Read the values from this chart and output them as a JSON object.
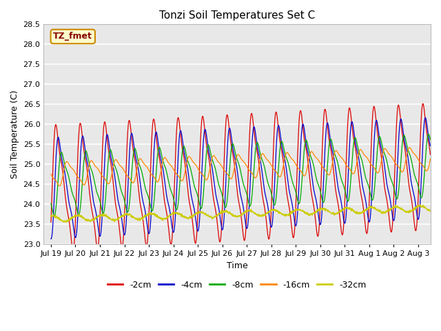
{
  "title": "Tonzi Soil Temperatures Set C",
  "xlabel": "Time",
  "ylabel": "Soil Temperature (C)",
  "ylim": [
    23.0,
    28.5
  ],
  "label_box_text": "TZ_fmet",
  "label_box_facecolor": "#ffffcc",
  "label_box_edgecolor": "#cc8800",
  "label_box_textcolor": "#880000",
  "background_color": "#ffffff",
  "plot_bg_color": "#e8e8e8",
  "grid_color": "#ffffff",
  "series": [
    {
      "label": "-2cm",
      "color": "#dd0000"
    },
    {
      "label": "-4cm",
      "color": "#0000cc"
    },
    {
      "label": "-8cm",
      "color": "#00aa00"
    },
    {
      "label": "-16cm",
      "color": "#ff8800"
    },
    {
      "label": "-32cm",
      "color": "#cccc00"
    }
  ],
  "n_points": 2000,
  "days_total": 15.5
}
